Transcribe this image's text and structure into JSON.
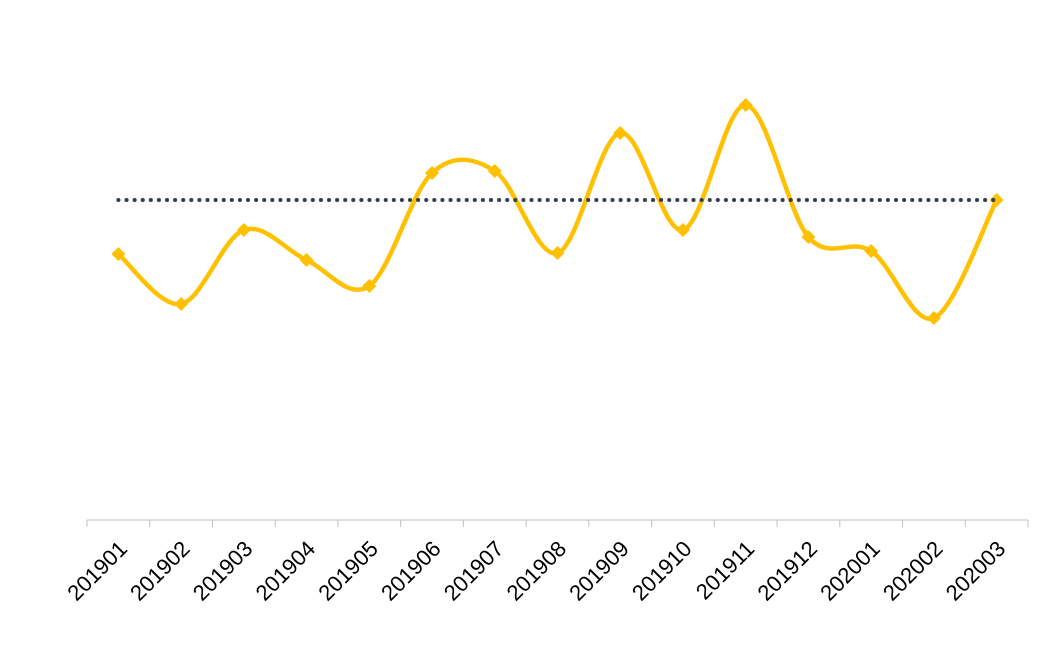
{
  "chart_data": {
    "type": "line",
    "categories": [
      "201901",
      "201902",
      "201903",
      "201904",
      "201905",
      "201906",
      "201907",
      "201908",
      "201909",
      "201910",
      "201911",
      "201912",
      "202001",
      "202002",
      "202003"
    ],
    "series": [
      {
        "color": "#ffc000",
        "style": "smooth",
        "marker": "diamond",
        "values": [
          53.2,
          43.2,
          58,
          52,
          46.8,
          69.4,
          69.8,
          53.4,
          77.4,
          58,
          83,
          56.6,
          53.8,
          40.4,
          64
        ]
      },
      {
        "color": "#333f4f",
        "style": "dotted",
        "values": [
          64,
          64,
          64,
          64,
          64,
          64,
          64,
          64,
          64,
          64,
          64,
          64,
          64,
          64,
          64
        ]
      }
    ],
    "ylim": [
      0,
      100
    ],
    "grid": false
  }
}
